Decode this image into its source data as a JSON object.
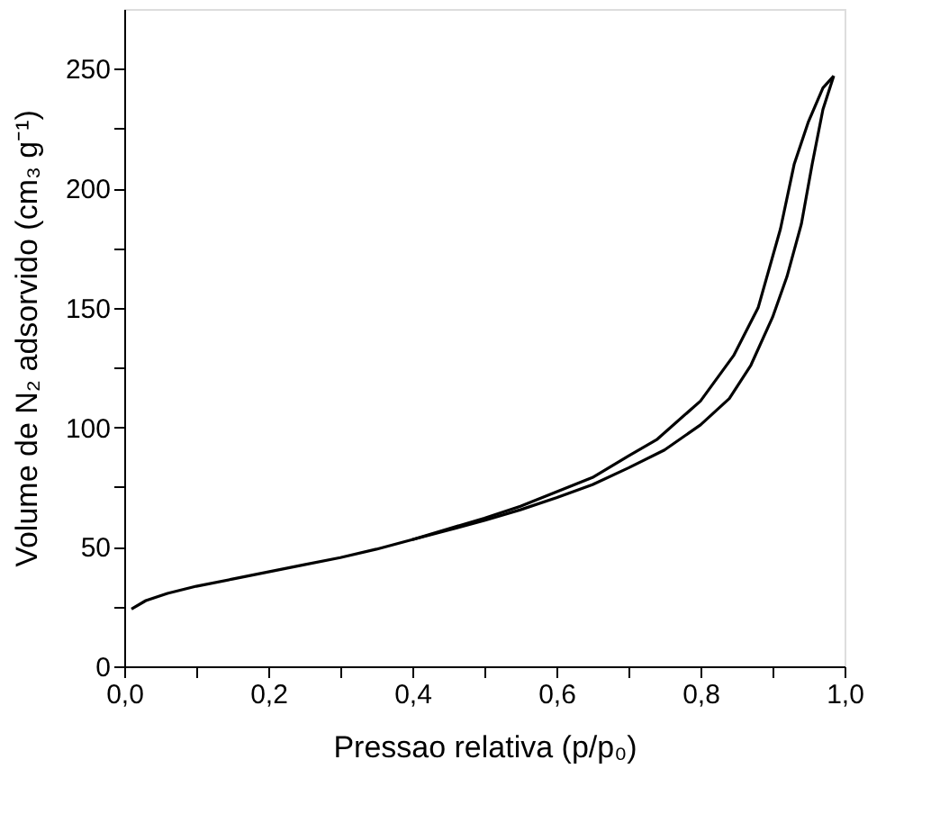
{
  "chart_data": {
    "type": "line",
    "xlabel": "Pressao relativa (p/p₀)",
    "ylabel": "Volume de N₂ adsorvido (cm₃ g⁻¹)",
    "series": [
      {
        "color": "#000000",
        "x": [
          0.01,
          0.03,
          0.06,
          0.1,
          0.15,
          0.2,
          0.25,
          0.3,
          0.35,
          0.4,
          0.45,
          0.5,
          0.55,
          0.6,
          0.65,
          0.7,
          0.75,
          0.8,
          0.84,
          0.87,
          0.9,
          0.92,
          0.94,
          0.955,
          0.97,
          0.985
        ],
        "values": [
          24,
          27.5,
          30.5,
          33.5,
          36.5,
          39.5,
          42.5,
          45.5,
          49,
          53,
          57,
          61,
          65.5,
          70.5,
          76,
          83,
          90.5,
          101,
          112,
          126,
          146,
          163,
          185,
          210,
          233,
          247
        ]
      },
      {
        "color": "#000000",
        "x": [
          0.985,
          0.97,
          0.95,
          0.93,
          0.911,
          0.88,
          0.846,
          0.8,
          0.74,
          0.7,
          0.65,
          0.6,
          0.55,
          0.5,
          0.45,
          0.4
        ],
        "values": [
          247,
          242,
          228,
          210,
          183,
          150,
          130,
          111,
          95,
          88,
          79,
          73,
          67,
          62,
          57.5,
          53
        ]
      }
    ],
    "xlim": [
      0,
      1
    ],
    "xticks": [
      {
        "value": 0,
        "label": "0,0"
      },
      {
        "value": 0.1,
        "label": null
      },
      {
        "value": 0.2,
        "label": "0,2"
      },
      {
        "value": 0.3,
        "label": null
      },
      {
        "value": 0.4,
        "label": "0,4"
      },
      {
        "value": 0.5,
        "label": null
      },
      {
        "value": 0.6,
        "label": "0,6"
      },
      {
        "value": 0.7,
        "label": null
      },
      {
        "value": 0.8,
        "label": "0,8"
      },
      {
        "value": 0.9,
        "label": null
      },
      {
        "value": 1,
        "label": "1,0"
      }
    ],
    "ylim": [
      0,
      275
    ],
    "yticks": [
      0,
      {
        "value": 25,
        "label": null
      },
      50,
      {
        "value": 75,
        "label": null
      },
      100,
      {
        "value": 125,
        "label": null
      },
      150,
      {
        "value": 175,
        "label": null
      },
      200,
      {
        "value": 225,
        "label": null
      },
      250
    ],
    "grid": false,
    "legend": false,
    "marker": "none",
    "line_style": "solid"
  }
}
